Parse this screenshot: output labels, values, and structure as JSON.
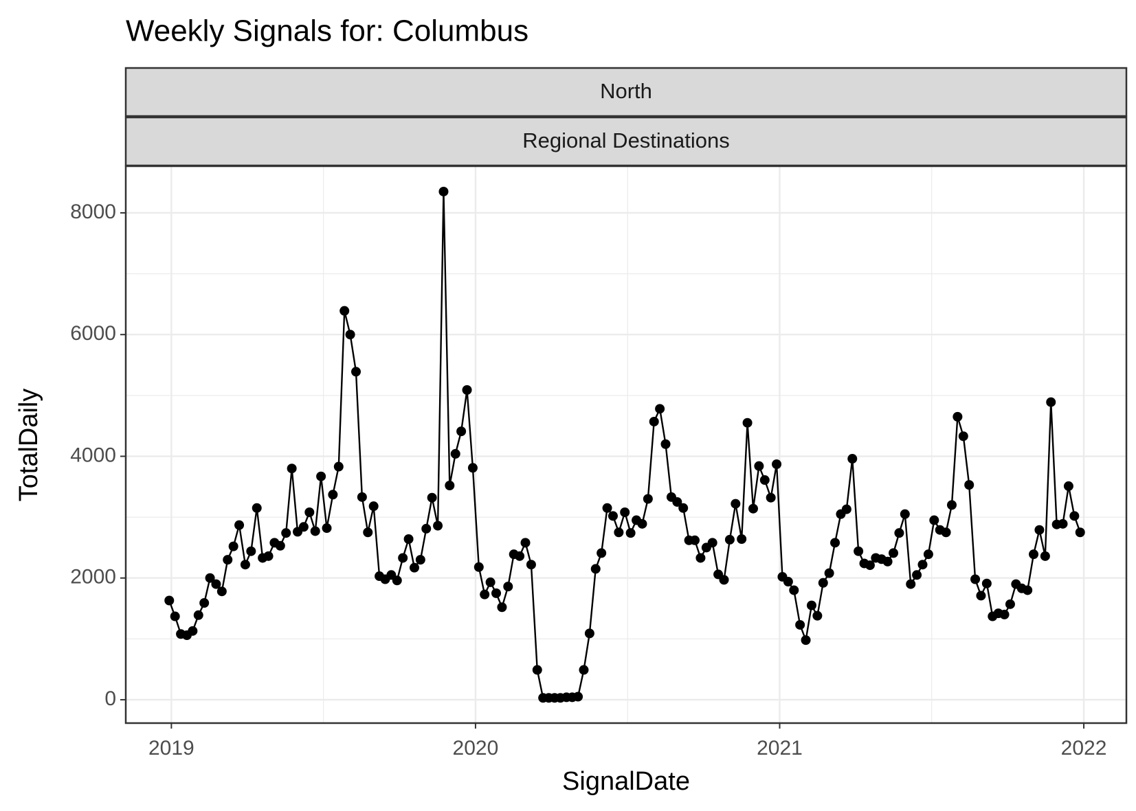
{
  "chart_data": {
    "type": "line",
    "title": "Weekly Signals for: Columbus",
    "strips": [
      "North",
      "Regional Destinations"
    ],
    "x_label": "SignalDate",
    "y_label": "TotalDaily",
    "xlim": [
      2018.85,
      2022.14
    ],
    "xticks": [
      2019,
      2020,
      2021,
      2022
    ],
    "minor_xticks": [
      2019.5,
      2020.5,
      2021.5
    ],
    "ylim": [
      -384,
      8767
    ],
    "yticks": [
      0,
      2000,
      4000,
      6000,
      8000
    ],
    "minor_yticks": [
      1000,
      3000,
      5000,
      7000
    ],
    "grid": true,
    "x": [
      2018.993,
      2019.012,
      2019.031,
      2019.051,
      2019.07,
      2019.089,
      2019.108,
      2019.127,
      2019.147,
      2019.166,
      2019.185,
      2019.204,
      2019.223,
      2019.243,
      2019.262,
      2019.281,
      2019.3,
      2019.319,
      2019.339,
      2019.358,
      2019.377,
      2019.396,
      2019.415,
      2019.435,
      2019.454,
      2019.473,
      2019.492,
      2019.511,
      2019.531,
      2019.55,
      2019.569,
      2019.588,
      2019.607,
      2019.627,
      2019.646,
      2019.665,
      2019.684,
      2019.703,
      2019.723,
      2019.742,
      2019.761,
      2019.78,
      2019.799,
      2019.819,
      2019.838,
      2019.857,
      2019.876,
      2019.895,
      2019.915,
      2019.934,
      2019.953,
      2019.972,
      2019.991,
      2020.011,
      2020.03,
      2020.049,
      2020.068,
      2020.087,
      2020.107,
      2020.126,
      2020.145,
      2020.164,
      2020.183,
      2020.203,
      2020.222,
      2020.241,
      2020.26,
      2020.279,
      2020.299,
      2020.318,
      2020.337,
      2020.356,
      2020.375,
      2020.395,
      2020.414,
      2020.433,
      2020.452,
      2020.471,
      2020.491,
      2020.51,
      2020.529,
      2020.548,
      2020.567,
      2020.587,
      2020.606,
      2020.625,
      2020.644,
      2020.663,
      2020.683,
      2020.702,
      2020.721,
      2020.74,
      2020.759,
      2020.779,
      2020.798,
      2020.817,
      2020.836,
      2020.855,
      2020.875,
      2020.894,
      2020.913,
      2020.932,
      2020.951,
      2020.971,
      2020.99,
      2021.009,
      2021.028,
      2021.047,
      2021.067,
      2021.086,
      2021.105,
      2021.124,
      2021.143,
      2021.163,
      2021.182,
      2021.201,
      2021.22,
      2021.239,
      2021.259,
      2021.278,
      2021.297,
      2021.316,
      2021.335,
      2021.355,
      2021.374,
      2021.393,
      2021.412,
      2021.431,
      2021.451,
      2021.47,
      2021.489,
      2021.508,
      2021.527,
      2021.547,
      2021.566,
      2021.585,
      2021.604,
      2021.623,
      2021.643,
      2021.662,
      2021.681,
      2021.7,
      2021.719,
      2021.739,
      2021.758,
      2021.777,
      2021.796,
      2021.815,
      2021.835,
      2021.854,
      2021.873,
      2021.892,
      2021.911,
      2021.931,
      2021.95,
      2021.969,
      2021.988
    ],
    "series": [
      {
        "color": "#000000",
        "values": [
          1630,
          1370,
          1080,
          1060,
          1130,
          1390,
          1590,
          2000,
          1900,
          1780,
          2300,
          2520,
          2870,
          2220,
          2440,
          3150,
          2330,
          2360,
          2580,
          2530,
          2740,
          3800,
          2760,
          2840,
          3080,
          2770,
          3670,
          2820,
          3370,
          3830,
          6390,
          6000,
          5390,
          3330,
          2750,
          3180,
          2030,
          1980,
          2050,
          1960,
          2330,
          2640,
          2170,
          2300,
          2810,
          3320,
          2860,
          8350,
          3520,
          4040,
          4410,
          5090,
          3810,
          2180,
          1730,
          1930,
          1750,
          1520,
          1860,
          2390,
          2360,
          2580,
          2220,
          490,
          30,
          30,
          30,
          30,
          40,
          40,
          50,
          490,
          1090,
          2150,
          2410,
          3150,
          3020,
          2750,
          3080,
          2740,
          2950,
          2890,
          3300,
          4570,
          4780,
          4200,
          3330,
          3250,
          3150,
          2620,
          2620,
          2330,
          2500,
          2580,
          2060,
          1970,
          2630,
          3220,
          2640,
          4550,
          3140,
          3840,
          3610,
          3320,
          3870,
          2020,
          1940,
          1800,
          1230,
          980,
          1550,
          1380,
          1920,
          2080,
          2580,
          3050,
          3130,
          3960,
          2440,
          2240,
          2210,
          2330,
          2310,
          2270,
          2410,
          2740,
          3050,
          1900,
          2050,
          2220,
          2390,
          2950,
          2790,
          2750,
          3200,
          4650,
          4330,
          3530,
          1980,
          1710,
          1910,
          1370,
          1420,
          1400,
          1570,
          1900,
          1830,
          1800,
          2390,
          2790,
          2360,
          4890,
          2880,
          2890,
          3510,
          3020,
          2750
        ]
      }
    ]
  }
}
